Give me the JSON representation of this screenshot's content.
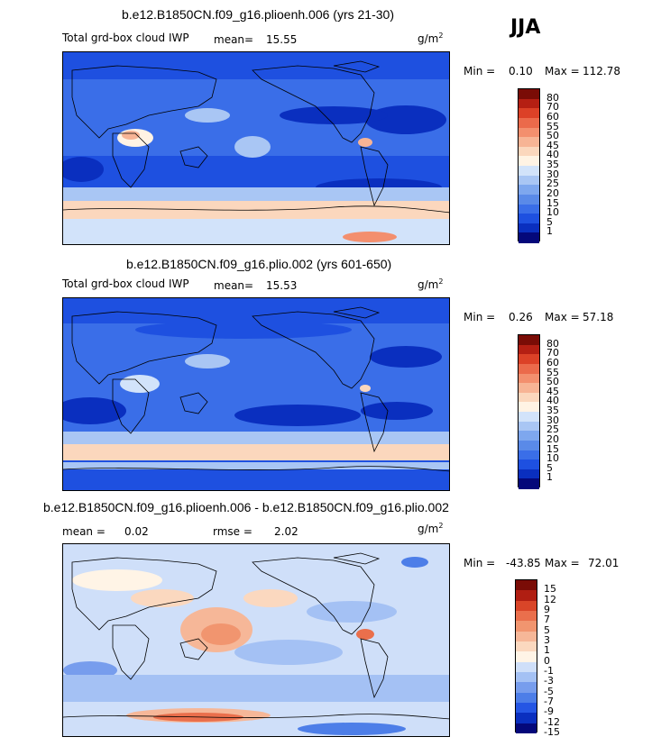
{
  "season": "JJA",
  "colors": {
    "abs_scale": [
      "#04087a",
      "#0a2fbf",
      "#1e50e0",
      "#3a6ee8",
      "#5a8ae8",
      "#7ea7ee",
      "#a9c6f4",
      "#d2e3fa",
      "#fff3e4",
      "#fbd7bd",
      "#f7b495",
      "#f38f6e",
      "#eb6a4b",
      "#dc4127",
      "#b51f13",
      "#7a0c06"
    ],
    "diff_scale": [
      "#04087a",
      "#0a2fbf",
      "#2556e4",
      "#4d7ee8",
      "#779ded",
      "#a4c1f4",
      "#cfdff9",
      "#fff4e6",
      "#fbd8bf",
      "#f6b798",
      "#f1956f",
      "#ea6f4c",
      "#d94528",
      "#b01e12",
      "#7a0c06"
    ]
  },
  "panels": [
    {
      "title": "b.e12.B1850CN.f09_g16.plioenh.006 (yrs 21-30)",
      "left_label": "Total grd-box cloud IWP",
      "mean_label": "mean=",
      "mean_value": "15.55",
      "units_base": "g/m",
      "units_exp": "2",
      "min_label": "Min =",
      "min_value": "0.10",
      "max_label": "Max =",
      "max_value": "112.78",
      "colorbar_labels": [
        "80",
        "70",
        "60",
        "55",
        "50",
        "45",
        "40",
        "35",
        "30",
        "25",
        "20",
        "15",
        "10",
        "5",
        "1"
      ]
    },
    {
      "title": "b.e12.B1850CN.f09_g16.plio.002 (yrs 601-650)",
      "left_label": "Total grd-box cloud IWP",
      "mean_label": "mean=",
      "mean_value": "15.53",
      "units_base": "g/m",
      "units_exp": "2",
      "min_label": "Min =",
      "min_value": "0.26",
      "max_label": "Max =",
      "max_value": "57.18",
      "colorbar_labels": [
        "80",
        "70",
        "60",
        "55",
        "50",
        "45",
        "40",
        "35",
        "30",
        "25",
        "20",
        "15",
        "10",
        "5",
        "1"
      ]
    },
    {
      "title": "b.e12.B1850CN.f09_g16.plioenh.006 - b.e12.B1850CN.f09_g16.plio.002",
      "mean_label": "mean =",
      "mean_value": "0.02",
      "rmse_label": "rmse =",
      "rmse_value": "2.02",
      "units_base": "g/m",
      "units_exp": "2",
      "min_label": "Min =",
      "min_value": "-43.85",
      "max_label": "Max =",
      "max_value": "72.01",
      "colorbar_labels": [
        "15",
        "12",
        "9",
        "7",
        "5",
        "3",
        "1",
        "0",
        "-1",
        "-3",
        "-5",
        "-7",
        "-9",
        "-12",
        "-15"
      ]
    }
  ]
}
